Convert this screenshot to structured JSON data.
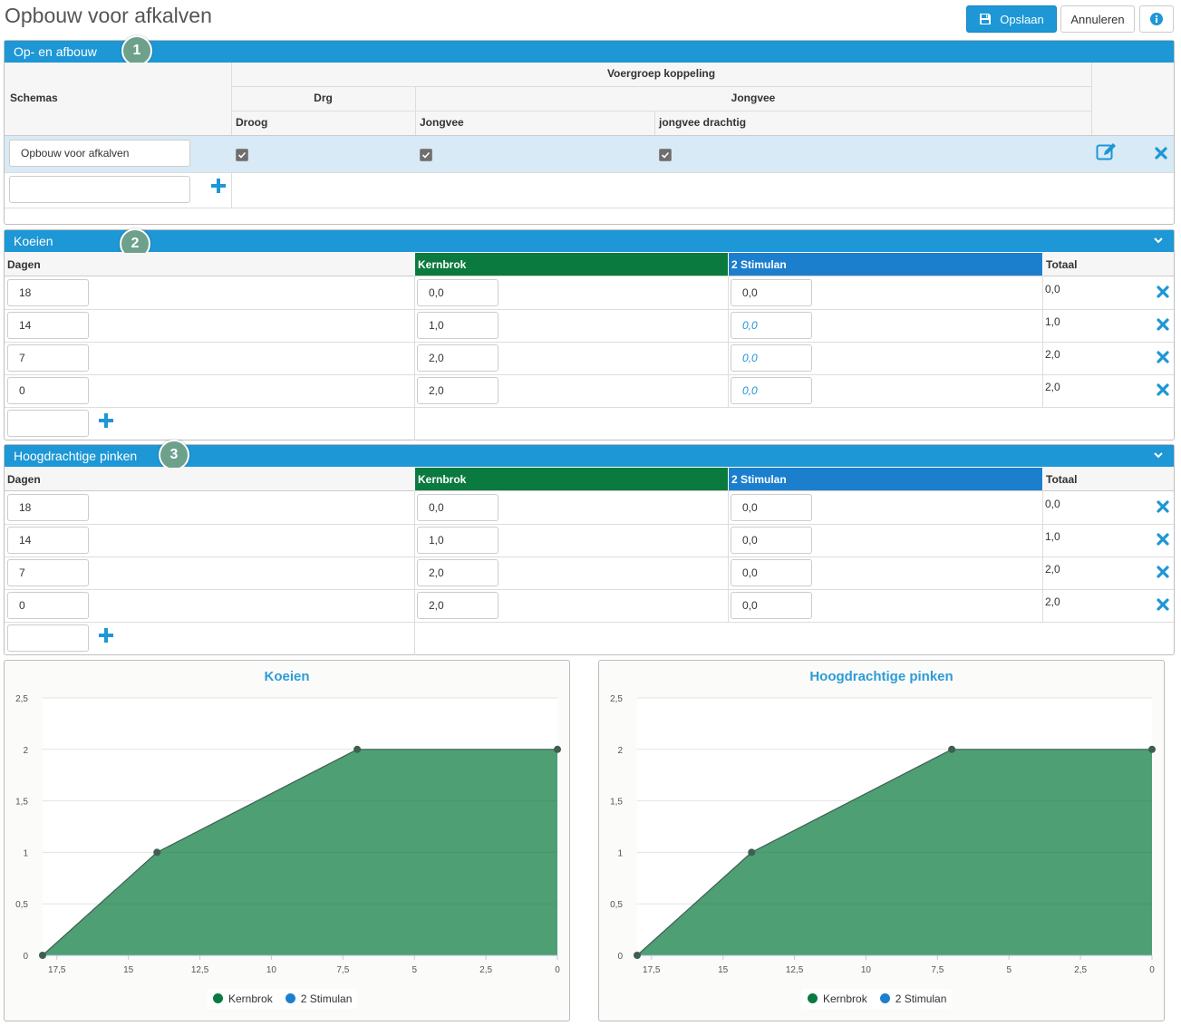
{
  "page": {
    "title": "Opbouw voor afkalven"
  },
  "toolbar": {
    "save_label": "Opslaan",
    "cancel_label": "Annuleren",
    "info_icon": "info-icon"
  },
  "colors": {
    "accent": "#1d97d5",
    "kernbrok": "#0a7a3e",
    "stimulan": "#1c7fce",
    "badge": "#6ea18c"
  },
  "section1": {
    "title": "Op- en afbouw",
    "badge": "1",
    "headers": {
      "schemas": "Schemas",
      "voergroep": "Voergroep koppeling",
      "drg": "Drg",
      "jongvee_group": "Jongvee",
      "droog": "Droog",
      "jongvee": "Jongvee",
      "jongvee_drachtig": "jongvee drachtig"
    },
    "row": {
      "name": "Opbouw voor afkalven",
      "droog": true,
      "jongvee": true,
      "jongvee_drachtig": true
    },
    "new_input_value": ""
  },
  "section2": {
    "title": "Koeien",
    "badge": "2",
    "headers": {
      "dagen": "Dagen",
      "kernbrok": "Kernbrok",
      "stimulan": "2 Stimulan",
      "totaal": "Totaal"
    },
    "rows": [
      {
        "dagen": "18",
        "kernbrok": "0,0",
        "stimulan": "0,0",
        "totaal": "0,0"
      },
      {
        "dagen": "14",
        "kernbrok": "1,0",
        "stimulan": "0,0",
        "totaal": "1,0"
      },
      {
        "dagen": "7",
        "kernbrok": "2,0",
        "stimulan": "0,0",
        "totaal": "2,0"
      },
      {
        "dagen": "0",
        "kernbrok": "2,0",
        "stimulan": "0,0",
        "totaal": "2,0"
      }
    ]
  },
  "section3": {
    "title": "Hoogdrachtige pinken",
    "badge": "3",
    "headers": {
      "dagen": "Dagen",
      "kernbrok": "Kernbrok",
      "stimulan": "2 Stimulan",
      "totaal": "Totaal"
    },
    "rows": [
      {
        "dagen": "18",
        "kernbrok": "0,0",
        "stimulan": "0,0",
        "totaal": "0,0"
      },
      {
        "dagen": "14",
        "kernbrok": "1,0",
        "stimulan": "0,0",
        "totaal": "1,0"
      },
      {
        "dagen": "7",
        "kernbrok": "2,0",
        "stimulan": "0,0",
        "totaal": "2,0"
      },
      {
        "dagen": "0",
        "kernbrok": "2,0",
        "stimulan": "0,0",
        "totaal": "2,0"
      }
    ]
  },
  "chart_data": [
    {
      "type": "area",
      "title": "Koeien",
      "x": [
        18,
        14,
        7,
        0
      ],
      "series": [
        {
          "name": "Kernbrok",
          "values": [
            0,
            1,
            2,
            2
          ]
        },
        {
          "name": "2 Stimulan",
          "values": [
            0,
            0,
            0,
            0
          ]
        }
      ],
      "xlim": [
        18,
        0
      ],
      "ylim": [
        0,
        2.5
      ],
      "xticks": [
        17.5,
        15,
        12.5,
        10,
        7.5,
        5,
        2.5,
        0
      ],
      "xtick_labels": [
        "17,5",
        "15",
        "12,5",
        "10",
        "7,5",
        "5",
        "2,5",
        "0"
      ],
      "yticks": [
        0,
        0.5,
        1,
        1.5,
        2,
        2.5
      ],
      "ytick_labels": [
        "0",
        "0,5",
        "1",
        "1,5",
        "2",
        "2,5"
      ],
      "legend": "bottom-center",
      "grid": true
    },
    {
      "type": "area",
      "title": "Hoogdrachtige pinken",
      "x": [
        18,
        14,
        7,
        0
      ],
      "series": [
        {
          "name": "Kernbrok",
          "values": [
            0,
            1,
            2,
            2
          ]
        },
        {
          "name": "2 Stimulan",
          "values": [
            0,
            0,
            0,
            0
          ]
        }
      ],
      "xlim": [
        18,
        0
      ],
      "ylim": [
        0,
        2.5
      ],
      "xticks": [
        17.5,
        15,
        12.5,
        10,
        7.5,
        5,
        2.5,
        0
      ],
      "xtick_labels": [
        "17,5",
        "15",
        "12,5",
        "10",
        "7,5",
        "5",
        "2,5",
        "0"
      ],
      "yticks": [
        0,
        0.5,
        1,
        1.5,
        2,
        2.5
      ],
      "ytick_labels": [
        "0",
        "0,5",
        "1",
        "1,5",
        "2",
        "2,5"
      ],
      "legend": "bottom-center",
      "grid": true
    }
  ]
}
